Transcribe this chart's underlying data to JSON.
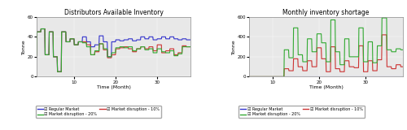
{
  "title_left": "Distributors Available Inventory",
  "title_right": "Monthly inventory shortage",
  "xlabel": "Time (Month)",
  "ylabel": "Tonne",
  "ylim_left": [
    0,
    60
  ],
  "ylim_right": [
    0,
    600
  ],
  "xlim_left": [
    1,
    38
  ],
  "xlim_right": [
    5,
    38
  ],
  "xticks": [
    10,
    20,
    30
  ],
  "yticks_left": [
    0,
    20,
    40,
    60
  ],
  "yticks_right": [
    0,
    200,
    400,
    600
  ],
  "colors": {
    "regular": "#3333cc",
    "disruption10": "#cc3333",
    "disruption20": "#33aa33"
  },
  "bg_color": "#e8e8e8",
  "legend_labels": [
    "Regular Market",
    "Market disruption - 10%",
    "Market disruption - 20%"
  ]
}
